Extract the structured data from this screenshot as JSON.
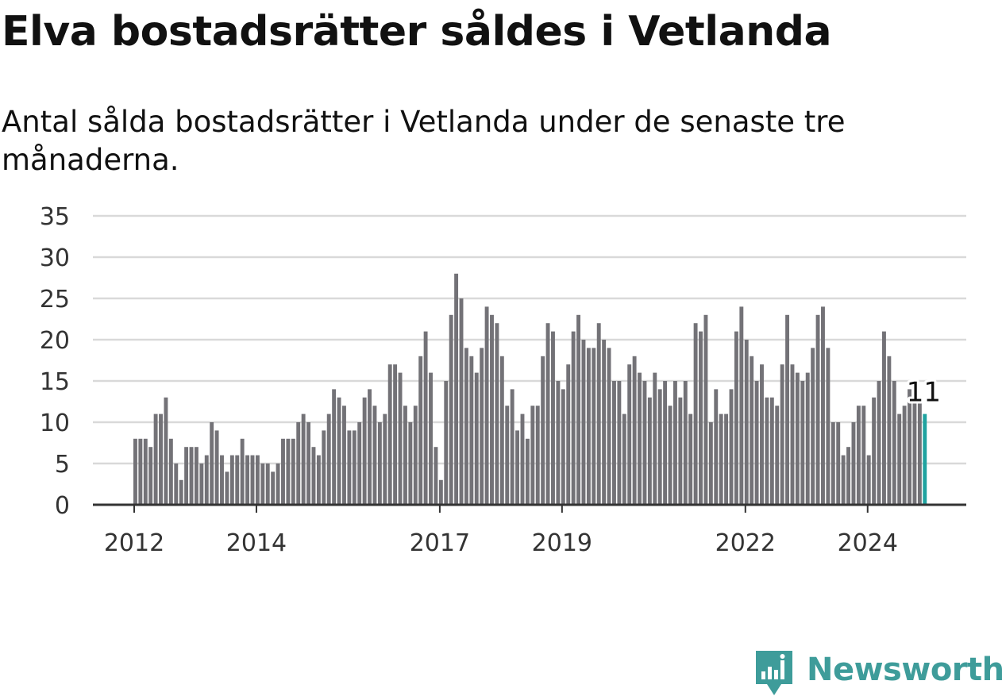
{
  "title": "Elva bostadsrätter såldes i Vetlanda",
  "subtitle": "Antal sålda bostadsrätter i Vetlanda under de senaste tre månaderna.",
  "brand": {
    "name": "Newsworthy",
    "color": "#3e9c9a",
    "icon": "newsworthy-logo-icon"
  },
  "colors": {
    "bar": "#737277",
    "highlight": "#1fa3a0",
    "grid": "#d9d9d9",
    "axis": "#333333",
    "text": "#333333"
  },
  "chart_data": {
    "type": "bar",
    "title": "Elva bostadsrätter såldes i Vetlanda",
    "subtitle": "Antal sålda bostadsrätter i Vetlanda under de senaste tre månaderna.",
    "xlabel": "",
    "ylabel": "",
    "ylim": [
      0,
      35
    ],
    "yticks": [
      0,
      5,
      10,
      15,
      20,
      25,
      30,
      35
    ],
    "grid": true,
    "legend": "none",
    "x_tick_labels": [
      "2012",
      "2014",
      "2017",
      "2019",
      "2022",
      "2024"
    ],
    "first_period": "2012-01",
    "highlight": {
      "label": "11",
      "value": 11,
      "position": "last"
    },
    "values": [
      8,
      8,
      8,
      7,
      11,
      11,
      13,
      8,
      5,
      3,
      7,
      7,
      7,
      5,
      6,
      10,
      9,
      6,
      4,
      6,
      6,
      8,
      6,
      6,
      6,
      5,
      5,
      4,
      5,
      8,
      8,
      8,
      10,
      11,
      10,
      7,
      6,
      9,
      11,
      14,
      13,
      12,
      9,
      9,
      10,
      13,
      14,
      12,
      10,
      11,
      17,
      17,
      16,
      12,
      10,
      12,
      18,
      21,
      16,
      7,
      3,
      15,
      23,
      28,
      25,
      19,
      18,
      16,
      19,
      24,
      23,
      22,
      18,
      12,
      14,
      9,
      11,
      8,
      12,
      12,
      18,
      22,
      21,
      15,
      14,
      17,
      21,
      23,
      20,
      19,
      19,
      22,
      20,
      19,
      15,
      15,
      11,
      17,
      18,
      16,
      15,
      13,
      16,
      14,
      15,
      12,
      15,
      13,
      15,
      11,
      22,
      21,
      23,
      10,
      14,
      11,
      11,
      14,
      21,
      24,
      20,
      18,
      15,
      17,
      13,
      13,
      12,
      17,
      23,
      17,
      16,
      15,
      16,
      19,
      23,
      24,
      19,
      10,
      10,
      6,
      7,
      10,
      12,
      12,
      6,
      13,
      15,
      21,
      18,
      15,
      11,
      12,
      14,
      13,
      13,
      11
    ]
  }
}
